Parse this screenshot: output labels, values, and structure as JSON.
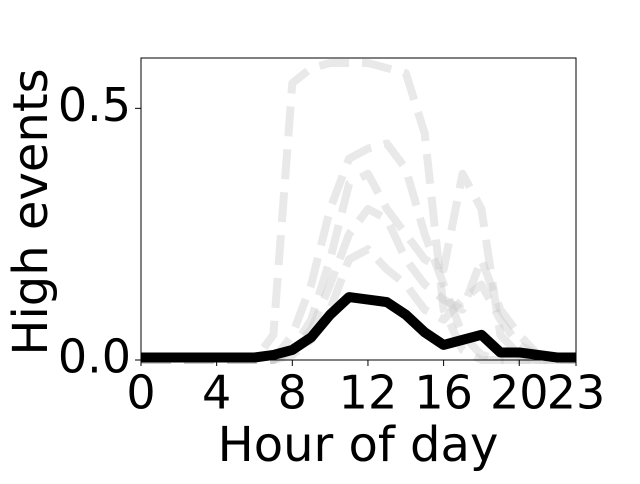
{
  "chart_data": {
    "type": "line",
    "xlabel": "Hour of day",
    "ylabel": "High events",
    "x": [
      0,
      1,
      2,
      3,
      4,
      5,
      6,
      7,
      8,
      9,
      10,
      11,
      12,
      13,
      14,
      15,
      16,
      17,
      18,
      19,
      20,
      21,
      22,
      23
    ],
    "xlim": [
      0,
      23
    ],
    "xticks": [
      0,
      4,
      8,
      12,
      16,
      20,
      23
    ],
    "ylim": [
      0,
      0.6
    ],
    "yticks": [
      {
        "value": 0,
        "label": "0.0"
      },
      0.5
    ],
    "series": [
      {
        "color": "rgba(200,200,200,0.4)",
        "linestyle": "dashed",
        "values": [
          0,
          0,
          0,
          0,
          0,
          0,
          0,
          0.05,
          0.55,
          0.58,
          0.59,
          0.59,
          0.59,
          0.58,
          0.57,
          0.45,
          0.1,
          0.02,
          0,
          0,
          0,
          0,
          0,
          0
        ]
      },
      {
        "color": "rgba(200,200,200,0.4)",
        "linestyle": "dashed",
        "values": [
          0,
          0,
          0,
          0,
          0,
          0,
          0,
          0,
          0.05,
          0.15,
          0.3,
          0.4,
          0.42,
          0.43,
          0.38,
          0.25,
          0.15,
          0.05,
          0.01,
          0,
          0,
          0,
          0,
          0
        ]
      },
      {
        "color": "rgba(200,200,200,0.4)",
        "linestyle": "dashed",
        "values": [
          0,
          0,
          0,
          0,
          0,
          0,
          0,
          0,
          0.02,
          0.08,
          0.2,
          0.35,
          0.37,
          0.3,
          0.25,
          0.2,
          0.18,
          0.37,
          0.3,
          0.05,
          0.01,
          0,
          0,
          0
        ]
      },
      {
        "color": "rgba(200,200,200,0.4)",
        "linestyle": "dashed",
        "values": [
          0,
          0,
          0,
          0,
          0,
          0,
          0,
          0,
          0.02,
          0.06,
          0.15,
          0.25,
          0.3,
          0.28,
          0.2,
          0.15,
          0.12,
          0.1,
          0.2,
          0.1,
          0.05,
          0.01,
          0,
          0
        ]
      },
      {
        "color": "rgba(200,200,200,0.4)",
        "linestyle": "dashed",
        "values": [
          0,
          0,
          0,
          0,
          0,
          0,
          0,
          0,
          0.01,
          0.04,
          0.1,
          0.2,
          0.22,
          0.18,
          0.15,
          0.1,
          0.08,
          0.12,
          0.15,
          0.08,
          0.03,
          0.01,
          0,
          0
        ]
      },
      {
        "color": "#000000",
        "linestyle": "solid",
        "values": [
          0.005,
          0.005,
          0.005,
          0.005,
          0.005,
          0.005,
          0.005,
          0.01,
          0.02,
          0.045,
          0.09,
          0.125,
          0.12,
          0.115,
          0.09,
          0.055,
          0.03,
          0.04,
          0.05,
          0.015,
          0.015,
          0.01,
          0.005,
          0.005
        ]
      }
    ]
  }
}
